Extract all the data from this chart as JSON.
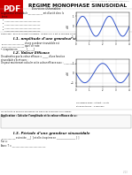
{
  "title": "REGIME MONOPHASE SINUSOIDAL",
  "subtitle": "Exercices théoriables",
  "header_small": "Chap.2  Méthode définitions définitions",
  "bg_color": "#ffffff",
  "graph1": {
    "color": "#3355cc",
    "grid_color": "#cccccc"
  },
  "graph2": {
    "color": "#3355cc",
    "grid_color": "#cccccc"
  },
  "pdf_bg": "#cc0000",
  "text_color": "#111111",
  "line_color": "#aaaaaa"
}
